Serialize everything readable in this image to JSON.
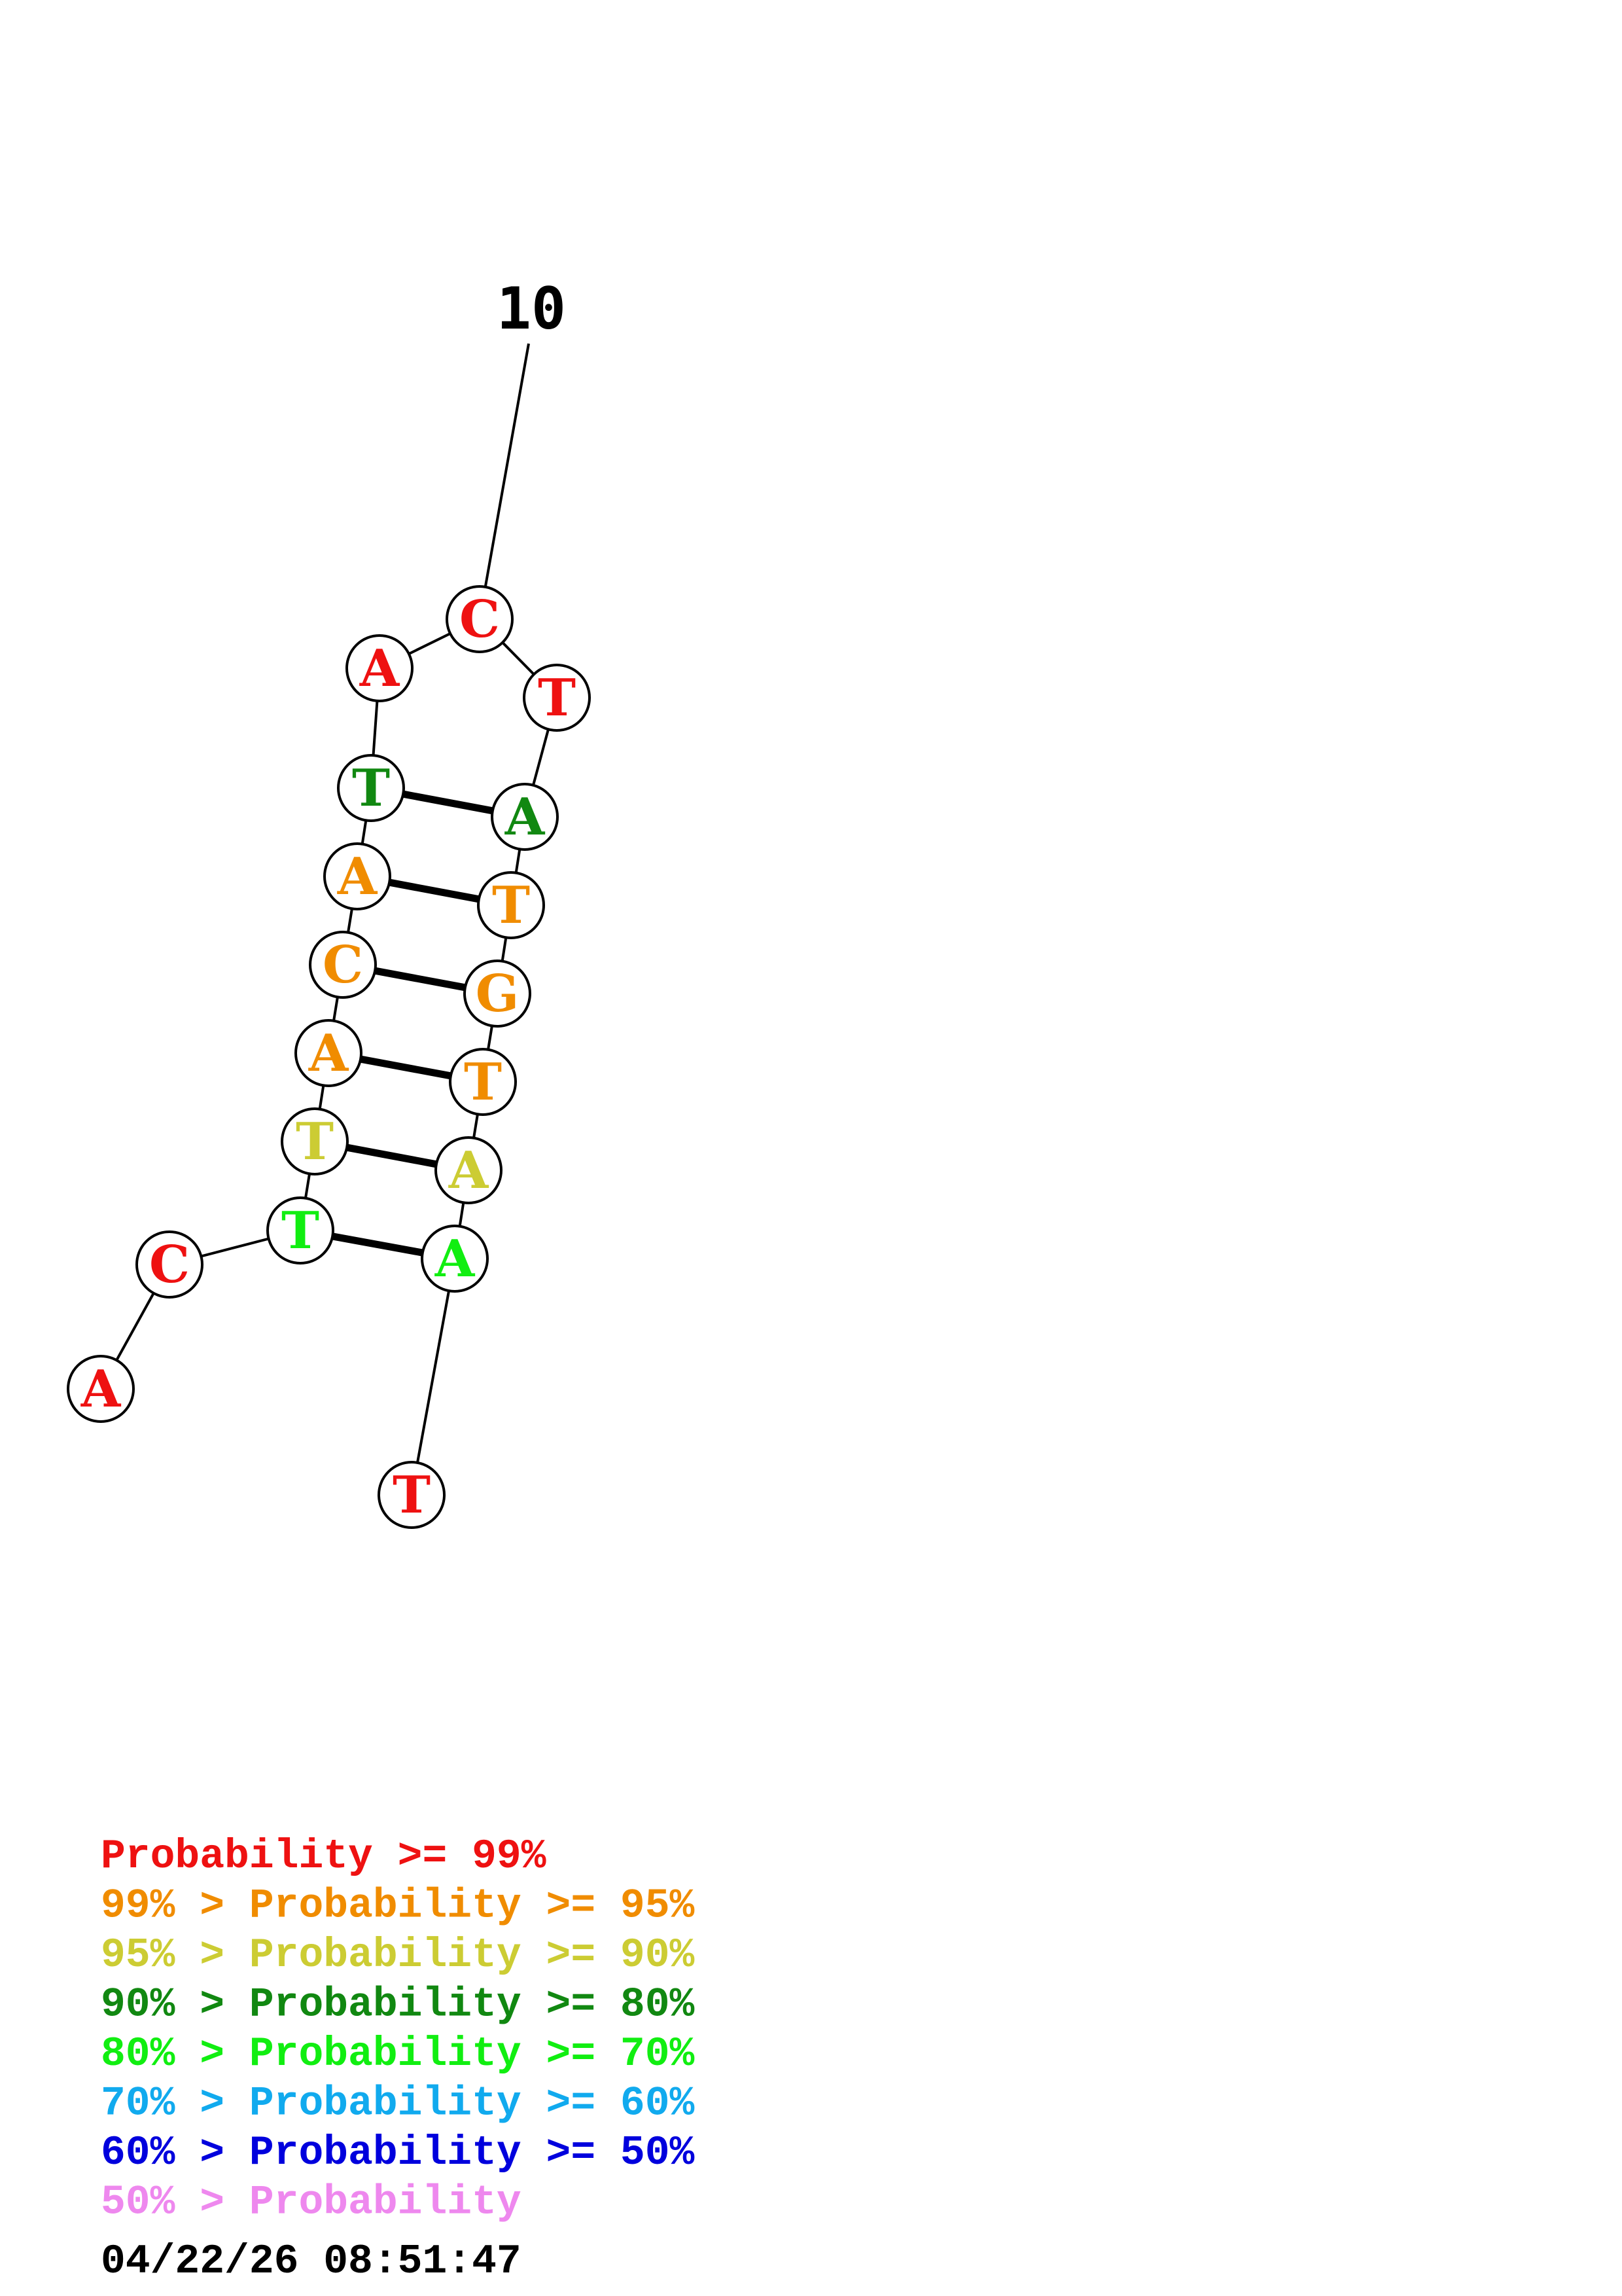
{
  "colors": {
    "red": "#ee1111",
    "orange": "#f08c00",
    "yellow": "#cccc33",
    "darkgreen": "#118811",
    "green": "#11ee11",
    "cyan": "#11aaee",
    "blue": "#0000dd",
    "pink": "#ee88ee"
  },
  "structure": {
    "nucleotides": [
      {
        "base": "A",
        "color": "red"
      },
      {
        "base": "C",
        "color": "red"
      },
      {
        "base": "T",
        "color": "green"
      },
      {
        "base": "T",
        "color": "yellow"
      },
      {
        "base": "A",
        "color": "orange"
      },
      {
        "base": "C",
        "color": "orange"
      },
      {
        "base": "A",
        "color": "orange"
      },
      {
        "base": "T",
        "color": "darkgreen"
      },
      {
        "base": "A",
        "color": "red"
      },
      {
        "base": "C",
        "color": "red"
      },
      {
        "base": "T",
        "color": "red"
      },
      {
        "base": "A",
        "color": "darkgreen"
      },
      {
        "base": "T",
        "color": "orange"
      },
      {
        "base": "G",
        "color": "orange"
      },
      {
        "base": "T",
        "color": "orange"
      },
      {
        "base": "A",
        "color": "yellow"
      },
      {
        "base": "A",
        "color": "green"
      },
      {
        "base": "T",
        "color": "red"
      }
    ],
    "pairs": [
      [
        3,
        17
      ],
      [
        4,
        16
      ],
      [
        5,
        15
      ],
      [
        6,
        14
      ],
      [
        7,
        13
      ],
      [
        8,
        12
      ]
    ],
    "marker": {
      "label": "10",
      "position": 10
    }
  },
  "legend": [
    {
      "text": "      Probability >= 99%",
      "color": "red"
    },
    {
      "text": "99% > Probability >= 95%",
      "color": "orange"
    },
    {
      "text": "95% > Probability >= 90%",
      "color": "yellow"
    },
    {
      "text": "90% > Probability >= 80%",
      "color": "darkgreen"
    },
    {
      "text": "80% > Probability >= 70%",
      "color": "green"
    },
    {
      "text": "70% > Probability >= 60%",
      "color": "cyan"
    },
    {
      "text": "60% > Probability >= 50%",
      "color": "blue"
    },
    {
      "text": "50% > Probability",
      "color": "pink"
    }
  ],
  "timestamp": "04/22/26 08:51:47"
}
